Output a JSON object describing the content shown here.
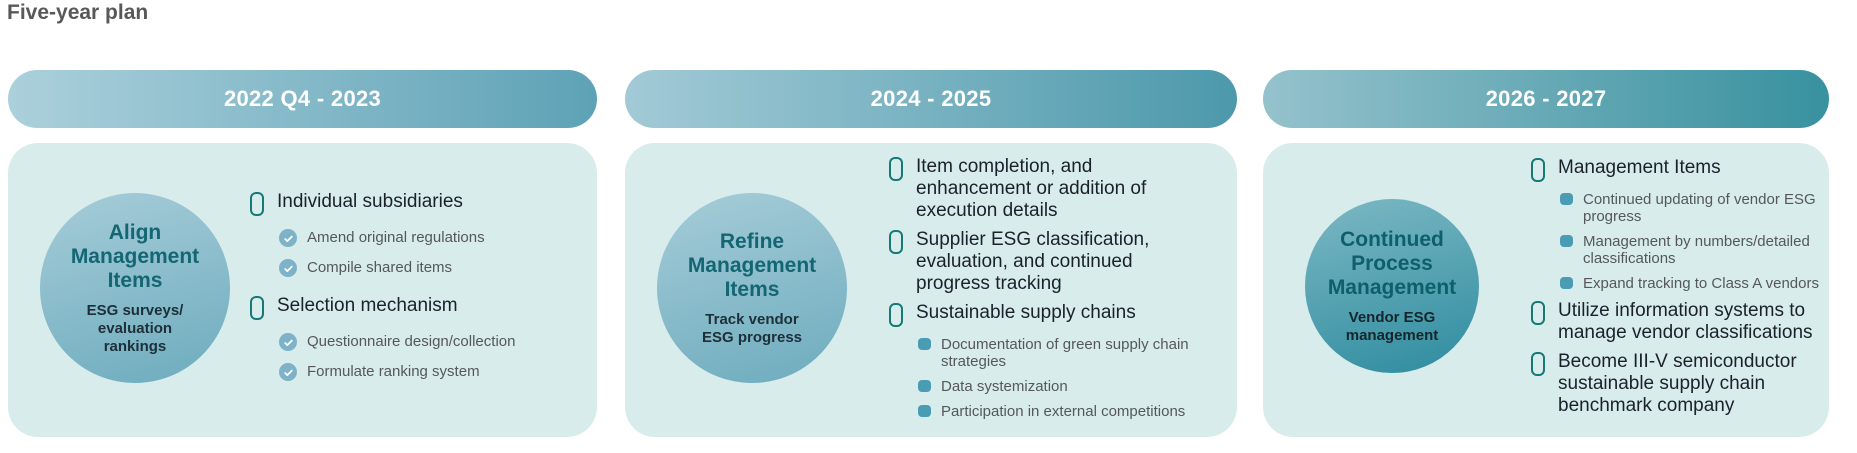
{
  "page": {
    "title": "Five-year plan"
  },
  "colors": {
    "panel_bg": "#d8ecec",
    "capsule_icon": "#157a76",
    "check_icon_bg": "#7db2c9",
    "square_icon_bg": "#4a9cb5",
    "level1_text": "#1b212b",
    "level2_text": "#55575c",
    "title_gray": "#57585a",
    "pill_text": "#ffffff"
  },
  "columns": [
    {
      "period": "2022 Q4 - 2023",
      "pill": {
        "from": "#abd0db",
        "to": "#5ea2b6"
      },
      "circle": {
        "title": "Align\nManagement\nItems",
        "subtitle": "ESG surveys/\nevaluation\nrankings",
        "from": "#a6ccd8",
        "to": "#6dacbe",
        "title_color": "#136672",
        "subtitle_color": "#1d2f38"
      },
      "items": [
        {
          "icon": "capsule-icon",
          "text": "Individual subsidiaries",
          "child_icon": "check-circle-icon",
          "children": [
            "Amend original regulations",
            "Compile shared items"
          ]
        },
        {
          "icon": "capsule-icon",
          "text": "Selection mechanism",
          "child_icon": "check-circle-icon",
          "children": [
            "Questionnaire design/collection",
            "Formulate ranking system"
          ]
        }
      ]
    },
    {
      "period": "2024 - 2025",
      "pill": {
        "from": "#a2cad6",
        "to": "#4c99ab"
      },
      "circle": {
        "title": "Refine\nManagement\nItems",
        "subtitle": "Track vendor\nESG progress",
        "from": "#a6ccd8",
        "to": "#6dacbe",
        "title_color": "#136672",
        "subtitle_color": "#1d2f38"
      },
      "items": [
        {
          "icon": "capsule-icon",
          "text": "Item completion, and enhancement or addition of execution details",
          "children": []
        },
        {
          "icon": "capsule-icon",
          "text": "Supplier ESG classification, evaluation, and continued progress tracking",
          "children": []
        },
        {
          "icon": "capsule-icon",
          "text": "Sustainable supply chains",
          "child_icon": "square-bullet-icon",
          "children": [
            "Documentation of green supply chain strategies",
            "Data systemization",
            "Participation in external competitions"
          ]
        }
      ]
    },
    {
      "period": "2026 - 2027",
      "pill": {
        "from": "#95c2cc",
        "to": "#38919f"
      },
      "circle": {
        "title": "Continued\nProcess\nManagement",
        "subtitle": "Vendor ESG\nmanagement",
        "from": "#7db8c4",
        "to": "#2d8c9f",
        "title_color": "#0d5f6c",
        "subtitle_color": "#15262c"
      },
      "items": [
        {
          "icon": "capsule-icon",
          "text": "Management Items",
          "child_icon": "square-bullet-icon",
          "children": [
            "Continued updating of vendor ESG progress",
            "Management by numbers/detailed classifications",
            "Expand tracking to Class A vendors"
          ]
        },
        {
          "icon": "capsule-icon",
          "text": "Utilize information systems to manage vendor classifications",
          "children": []
        },
        {
          "icon": "capsule-icon",
          "text": "Become III-V semiconductor sustainable supply chain benchmark company",
          "children": []
        }
      ]
    }
  ]
}
